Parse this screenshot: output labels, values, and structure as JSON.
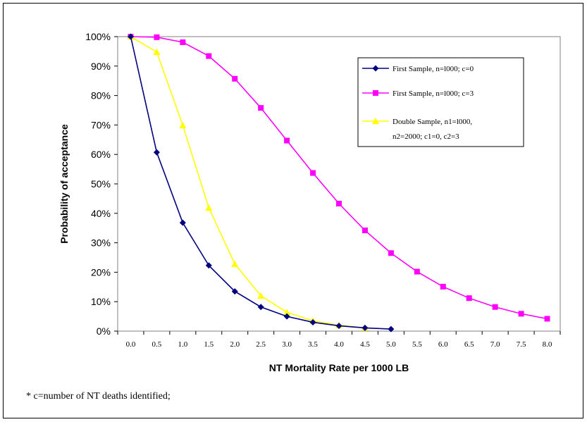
{
  "chart_data": {
    "type": "line",
    "xlabel": "NT Mortality Rate per 1000 LB",
    "ylabel": "Probability of acceptance",
    "x_tick_labels": [
      "0.0",
      "0.5",
      "1.0",
      "1.5",
      "2.0",
      "2.5",
      "3.0",
      "3.5",
      "4.0",
      "4.5",
      "5.0",
      "5.5",
      "6.0",
      "6.5",
      "7.0",
      "7.5",
      "8.0"
    ],
    "y_tick_labels": [
      "0%",
      "10%",
      "20%",
      "30%",
      "40%",
      "50%",
      "60%",
      "70%",
      "80%",
      "90%",
      "100%"
    ],
    "ylim": [
      0,
      100
    ],
    "grid": false,
    "legend_position": "top-right",
    "series": [
      {
        "name": "First Sample, n=l000; c=0",
        "label_lines": [
          "First Sample, n=l000; c=0"
        ],
        "color": "#000080",
        "marker": "diamond",
        "x": [
          0.0,
          0.5,
          1.0,
          1.5,
          2.0,
          2.5,
          3.0,
          3.5,
          4.0,
          4.5,
          5.0
        ],
        "values": [
          100,
          60.7,
          36.8,
          22.3,
          13.5,
          8.2,
          5.0,
          3.0,
          1.8,
          1.1,
          0.7
        ]
      },
      {
        "name": "First Sample, n=l000; c=3",
        "label_lines": [
          "First Sample, n=l000; c=3"
        ],
        "color": "#ff00ff",
        "marker": "square",
        "x": [
          0.0,
          0.5,
          1.0,
          1.5,
          2.0,
          2.5,
          3.0,
          3.5,
          4.0,
          4.5,
          5.0,
          5.5,
          6.0,
          6.5,
          7.0,
          7.5,
          8.0
        ],
        "values": [
          100,
          99.8,
          98.1,
          93.4,
          85.7,
          75.8,
          64.7,
          53.7,
          43.3,
          34.2,
          26.5,
          20.2,
          15.1,
          11.2,
          8.2,
          5.9,
          4.2
        ]
      },
      {
        "name": "Double Sample, n1=l000, n2=2000; c1=0, c2=3",
        "label_lines": [
          "Double Sample, n1=l000,",
          "n2=2000; c1=0, c2=3"
        ],
        "color": "#ffff00",
        "marker": "triangle",
        "x": [
          0.0,
          0.5,
          1.0,
          1.5,
          2.0,
          2.5,
          3.0,
          3.5,
          4.0,
          4.5
        ],
        "values": [
          100,
          94.8,
          69.9,
          41.9,
          22.8,
          12.0,
          6.4,
          3.5,
          2.0,
          1.1
        ]
      }
    ]
  },
  "footnote": "* c=number of NT deaths identified;"
}
